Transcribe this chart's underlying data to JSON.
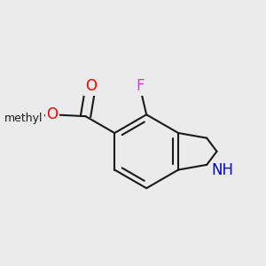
{
  "bg_color": "#ebebeb",
  "bond_color": "#1a1a1a",
  "bond_width": 1.5,
  "atom_colors": {
    "O": "#ff0000",
    "N": "#0000cc",
    "F": "#cc44cc",
    "C": "#1a1a1a"
  },
  "font_size": 12
}
